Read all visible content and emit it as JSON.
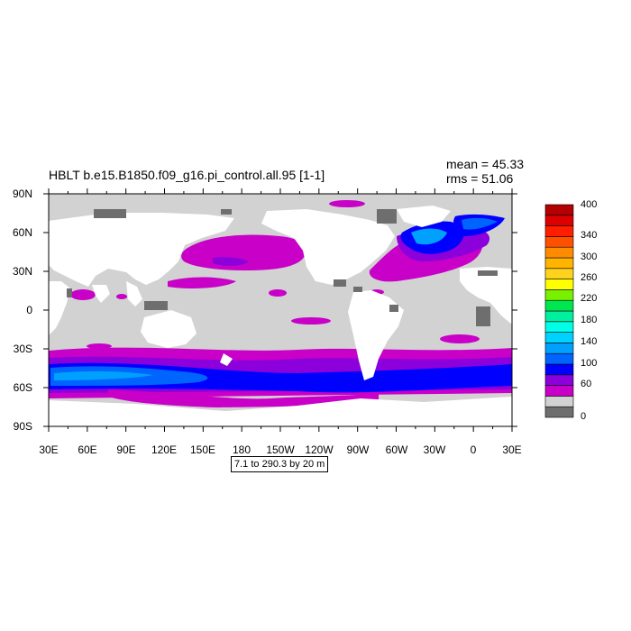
{
  "title": "HBLT b.e15.B1850.f09_g16.pi_control.all.95 [1-1]",
  "stats": {
    "mean": "mean = 45.33",
    "rms": "rms = 51.06"
  },
  "info_box": "7.1 to 290.3 by 20 m",
  "lat_labels": [
    "90N",
    "60N",
    "30N",
    "0",
    "30S",
    "60S",
    "90S"
  ],
  "lon_labels": [
    "30E",
    "60E",
    "90E",
    "120E",
    "150E",
    "180",
    "150W",
    "120W",
    "90W",
    "60W",
    "30W",
    "0",
    "30E"
  ],
  "colorbar": {
    "labels": [
      "400",
      "340",
      "300",
      "260",
      "220",
      "180",
      "140",
      "100",
      "60",
      "0"
    ],
    "colors": [
      "#6e6e6e",
      "#d2d2d2",
      "#c800c8",
      "#8c00dc",
      "#0000ff",
      "#0064ff",
      "#00a0ff",
      "#00d2ff",
      "#00ffe6",
      "#00f0a0",
      "#00e650",
      "#78f000",
      "#ffff00",
      "#ffd21e",
      "#ffb400",
      "#ff8c00",
      "#ff5000",
      "#ff1e00",
      "#dc0000",
      "#b40000"
    ]
  }
}
